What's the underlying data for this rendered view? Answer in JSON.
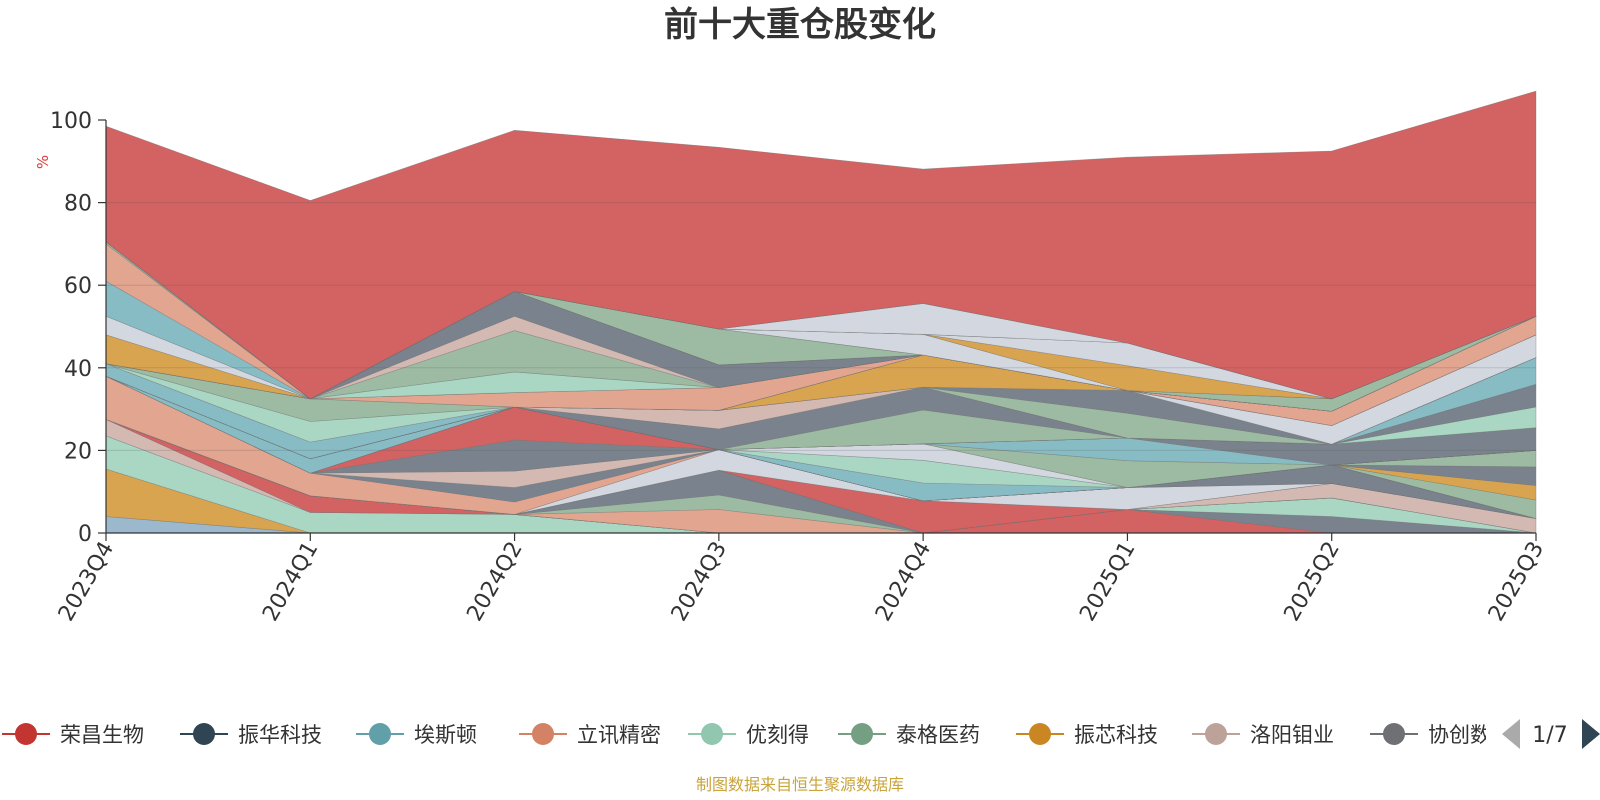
{
  "chart_data": {
    "type": "area",
    "stacked": "percent",
    "title": "前十大重仓股变化",
    "ylabel": "%",
    "ylim": [
      0,
      100
    ],
    "yticks": [
      0,
      20,
      40,
      60,
      80,
      100
    ],
    "grid": true,
    "legend_position": "bottom",
    "categories": [
      "2023Q4",
      "2024Q1",
      "2024Q2",
      "2024Q3",
      "2024Q4",
      "2025Q1",
      "2025Q2",
      "2025Q3"
    ],
    "series": [
      {
        "name": "",
        "color": "#9cb8cc",
        "values": [
          4,
          0,
          0,
          0,
          0,
          0,
          0,
          0
        ]
      },
      {
        "name": "",
        "color": "#d9a450",
        "values": [
          11.5,
          0,
          0,
          0,
          0,
          0,
          0,
          0
        ]
      },
      {
        "name": "",
        "color": "#a9d7c4",
        "values": [
          8,
          5,
          4.5,
          0,
          0,
          0,
          0,
          0
        ]
      },
      {
        "name": "",
        "color": "#d3b9b2",
        "values": [
          4,
          0,
          0,
          0,
          0,
          0,
          0,
          0
        ]
      },
      {
        "name": "",
        "color": "#d36262",
        "values": [
          0,
          4,
          0,
          0,
          0,
          5.7,
          0,
          0
        ]
      },
      {
        "name": "",
        "color": "#7a838d",
        "values": [
          0,
          0,
          0,
          0,
          0,
          0,
          4,
          0
        ]
      },
      {
        "name": "",
        "color": "#a9d7c4",
        "values": [
          0,
          0,
          0,
          0,
          0,
          0,
          4.5,
          0
        ]
      },
      {
        "name": "",
        "color": "#e2a58f",
        "values": [
          0,
          0,
          0,
          5.7,
          0,
          0,
          0,
          0
        ]
      },
      {
        "name": "",
        "color": "#9cbba2",
        "values": [
          0,
          0,
          0,
          3.5,
          0,
          0,
          0,
          0
        ]
      },
      {
        "name": "",
        "color": "#7a838d",
        "values": [
          0,
          0,
          0,
          6,
          0,
          0,
          0,
          0
        ]
      },
      {
        "name": "",
        "color": "#d3b9b2",
        "values": [
          0,
          0,
          0,
          0,
          0,
          0,
          3.5,
          3.5
        ]
      },
      {
        "name": "",
        "color": "#d36262",
        "values": [
          0,
          0,
          0,
          0,
          7.8,
          0,
          0,
          0
        ]
      },
      {
        "name": "",
        "color": "#d3d8e0",
        "values": [
          0,
          0,
          0,
          5,
          0,
          5.3,
          0,
          0
        ]
      },
      {
        "name": "",
        "color": "#e2a58f",
        "values": [
          10.5,
          5.5,
          3,
          0,
          0,
          0,
          0,
          0
        ]
      },
      {
        "name": "",
        "color": "#7a838d",
        "values": [
          0,
          0,
          3.5,
          0,
          0,
          0,
          4.5,
          0
        ]
      },
      {
        "name": "",
        "color": "#d3b9b2",
        "values": [
          0,
          0,
          4,
          0,
          0,
          0,
          0,
          0
        ]
      },
      {
        "name": "",
        "color": "#7a838d",
        "values": [
          0,
          0,
          7.5,
          0,
          0,
          0,
          0,
          0
        ]
      },
      {
        "name": "",
        "color": "#d36262",
        "values": [
          0,
          0,
          8,
          0,
          0,
          0,
          0,
          0
        ]
      },
      {
        "name": "",
        "color": "#9cbba2",
        "values": [
          0,
          0,
          0,
          0,
          0,
          0,
          0,
          4.5
        ]
      },
      {
        "name": "",
        "color": "#d9a450",
        "values": [
          0,
          0,
          0,
          0,
          0,
          0,
          0,
          3.5
        ]
      },
      {
        "name": "",
        "color": "#7a838d",
        "values": [
          0,
          0,
          0,
          0,
          0,
          0,
          0,
          4.5
        ]
      },
      {
        "name": "",
        "color": "#9cbba2",
        "values": [
          0,
          0,
          0,
          0,
          0,
          0,
          0,
          4
        ]
      },
      {
        "name": "",
        "color": "#87bcc5",
        "values": [
          0,
          3.5,
          0,
          0,
          4.3,
          0,
          0,
          0
        ]
      },
      {
        "name": "",
        "color": "#a9d7c4",
        "values": [
          0,
          0,
          0,
          0,
          5.5,
          0,
          0,
          0
        ]
      },
      {
        "name": "",
        "color": "#d3d8e0",
        "values": [
          0,
          0,
          0,
          0,
          4,
          0,
          0,
          0
        ]
      },
      {
        "name": "",
        "color": "#9cbba2",
        "values": [
          0,
          0,
          0,
          0,
          0,
          6.5,
          0,
          0
        ]
      },
      {
        "name": "",
        "color": "#87bcc5",
        "values": [
          0,
          0,
          0,
          0,
          0,
          5.5,
          0,
          0
        ]
      },
      {
        "name": "",
        "color": "#7a838d",
        "values": [
          0,
          0,
          0,
          0,
          0,
          0,
          5,
          5.5
        ]
      },
      {
        "name": "",
        "color": "#a9d7c4",
        "values": [
          0,
          0,
          0,
          0,
          0,
          0,
          0,
          5
        ]
      },
      {
        "name": "",
        "color": "#7a838d",
        "values": [
          0,
          0,
          0,
          0,
          0,
          0,
          0,
          5.5
        ]
      },
      {
        "name": "",
        "color": "#87bcc5",
        "values": [
          0,
          0,
          0,
          0,
          0,
          0,
          0,
          6.5
        ]
      },
      {
        "name": "",
        "color": "#9cbba2",
        "values": [
          0,
          0,
          0,
          0,
          8.2,
          0,
          0,
          0
        ]
      },
      {
        "name": "",
        "color": "#7a838d",
        "values": [
          0,
          0,
          0,
          5,
          5.5,
          0,
          0,
          0
        ]
      },
      {
        "name": "",
        "color": "#d3b9b2",
        "values": [
          0,
          0,
          0,
          4.5,
          0,
          0,
          0,
          0
        ]
      },
      {
        "name": "",
        "color": "#9cbba2",
        "values": [
          0,
          0,
          0,
          0,
          0,
          6,
          0,
          0
        ]
      },
      {
        "name": "",
        "color": "#7a838d",
        "values": [
          0,
          0,
          0,
          0,
          0,
          5.5,
          0,
          0
        ]
      },
      {
        "name": "",
        "color": "#d9a450",
        "values": [
          0,
          0,
          0,
          0,
          7.8,
          0,
          0,
          0
        ]
      },
      {
        "name": "",
        "color": "#d3d8e0",
        "values": [
          0,
          0,
          0,
          0,
          0,
          0,
          4.5,
          5.5
        ]
      },
      {
        "name": "",
        "color": "#87bcc5",
        "values": [
          3,
          4,
          0,
          0,
          0,
          0,
          0,
          0
        ]
      },
      {
        "name": "",
        "color": "#a9d7c4",
        "values": [
          0,
          5,
          0,
          0,
          0,
          0,
          0,
          0
        ]
      },
      {
        "name": "",
        "color": "#9cbba2",
        "values": [
          0,
          5.5,
          0,
          0,
          0,
          0,
          0,
          0
        ]
      },
      {
        "name": "",
        "color": "#e2a58f",
        "values": [
          0,
          0,
          3.5,
          5.5,
          0,
          0,
          3.5,
          4.5
        ]
      },
      {
        "name": "",
        "color": "#a9d7c4",
        "values": [
          0,
          0,
          0,
          0,
          0,
          0,
          0,
          0
        ]
      },
      {
        "name": "",
        "color": "#a9d7c4",
        "values": [
          0,
          0,
          5,
          0,
          0,
          0,
          0,
          0
        ]
      },
      {
        "name": "",
        "color": "#9cbba2",
        "values": [
          0,
          0,
          10,
          0,
          0,
          0,
          0,
          0
        ]
      },
      {
        "name": "",
        "color": "#d3b9b2",
        "values": [
          0,
          0,
          3.5,
          0,
          0,
          0,
          0,
          0
        ]
      },
      {
        "name": "",
        "color": "#7a838d",
        "values": [
          0,
          0,
          6,
          5.5,
          0,
          0,
          0,
          0
        ]
      },
      {
        "name": "",
        "color": "#d9a450",
        "values": [
          7,
          0,
          0,
          0,
          0,
          0,
          0,
          0
        ]
      },
      {
        "name": "",
        "color": "#d3d8e0",
        "values": [
          4.5,
          0,
          0,
          0,
          0,
          0,
          0,
          0
        ]
      },
      {
        "name": "",
        "color": "#87bcc5",
        "values": [
          8.5,
          0,
          0,
          0,
          0,
          0,
          0,
          0
        ]
      },
      {
        "name": "",
        "color": "#e2a58f",
        "values": [
          9,
          0,
          0,
          0,
          0,
          0,
          0,
          0
        ]
      },
      {
        "name": "",
        "color": "#9cbba2",
        "values": [
          0.5,
          0,
          0,
          0,
          0,
          0,
          0,
          0
        ]
      },
      {
        "name": "",
        "color": "#9cbba2",
        "values": [
          0,
          0,
          0,
          8.7,
          0,
          0,
          0,
          0
        ]
      },
      {
        "name": "",
        "color": "#9cbba2",
        "values": [
          0,
          0,
          0,
          0,
          0,
          0,
          3,
          0
        ]
      },
      {
        "name": "",
        "color": "#d3d8e0",
        "values": [
          0,
          0,
          0,
          0,
          5,
          0,
          0,
          0
        ]
      },
      {
        "name": "",
        "color": "#d9a450",
        "values": [
          0,
          0,
          0,
          0,
          0,
          6,
          0,
          0
        ]
      },
      {
        "name": "",
        "color": "#d3d8e0",
        "values": [
          0,
          0,
          0,
          0,
          0,
          5.5,
          0,
          0
        ]
      },
      {
        "name": "",
        "color": "#d9a450",
        "values": [
          0,
          0,
          0,
          0,
          0,
          0,
          0,
          0
        ]
      },
      {
        "name": "",
        "color": "#d3d8e0",
        "values": [
          0,
          0,
          0,
          0,
          7.5,
          0,
          0,
          0
        ]
      },
      {
        "name": "",
        "color": "#d3d8e0",
        "values": [
          0,
          0,
          0,
          0,
          0,
          0,
          0,
          0
        ]
      },
      {
        "name": "",
        "color": "#d36262",
        "values": [
          28,
          48,
          39,
          44,
          32.5,
          45,
          60,
          54.5
        ]
      }
    ],
    "legend": {
      "items": [
        {
          "name": "荣昌生物",
          "color": "#c23531"
        },
        {
          "name": "振华科技",
          "color": "#2f4554"
        },
        {
          "name": "埃斯顿",
          "color": "#61a0a8"
        },
        {
          "name": "立讯精密",
          "color": "#d48265"
        },
        {
          "name": "优刻得",
          "color": "#91c7ae"
        },
        {
          "name": "泰格医药",
          "color": "#749f83"
        },
        {
          "name": "振芯科技",
          "color": "#ca8622"
        },
        {
          "name": "洛阳钼业",
          "color": "#bda29a"
        },
        {
          "name": "协创数据",
          "color": "#6e7074"
        }
      ],
      "page": "1/7"
    },
    "source_note": "制图数据来自恒生聚源数据库"
  }
}
